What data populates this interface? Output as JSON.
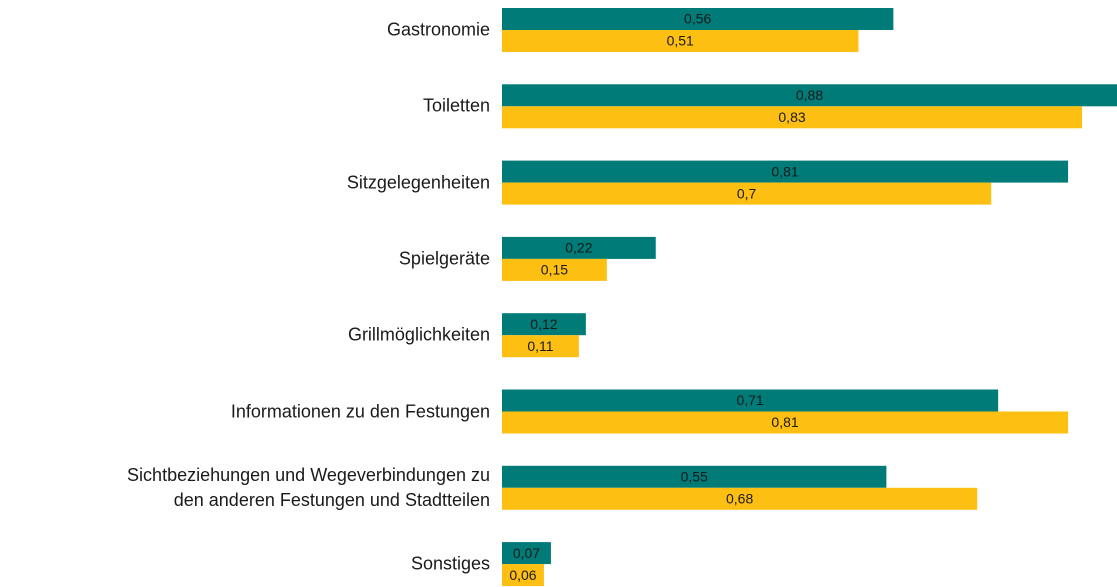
{
  "chart_data": {
    "type": "barh",
    "categories": [
      "Gastronomie",
      "Toiletten",
      "Sitzgelegenheiten",
      "Spielgeräte",
      "Grillmöglichkeiten",
      "Informationen zu den Festungen",
      "Sichtbeziehungen und Wegeverbindungen zu\nden anderen Festungen und Stadtteilen",
      "Sonstiges"
    ],
    "series": [
      {
        "color": "#007b77",
        "values": [
          0.56,
          0.88,
          0.81,
          0.22,
          0.12,
          0.71,
          0.55,
          0.07
        ],
        "value_labels": [
          "0,56",
          "0,88",
          "0,81",
          "0,22",
          "0,12",
          "0,71",
          "0,55",
          "0,07"
        ]
      },
      {
        "color": "#fdbf12",
        "values": [
          0.51,
          0.83,
          0.7,
          0.15,
          0.11,
          0.81,
          0.68,
          0.06
        ],
        "value_labels": [
          "0,51",
          "0,83",
          "0,7",
          "0,15",
          "0,11",
          "0,81",
          "0,68",
          "0,06"
        ]
      }
    ],
    "xlim": [
      0,
      0.88
    ]
  }
}
